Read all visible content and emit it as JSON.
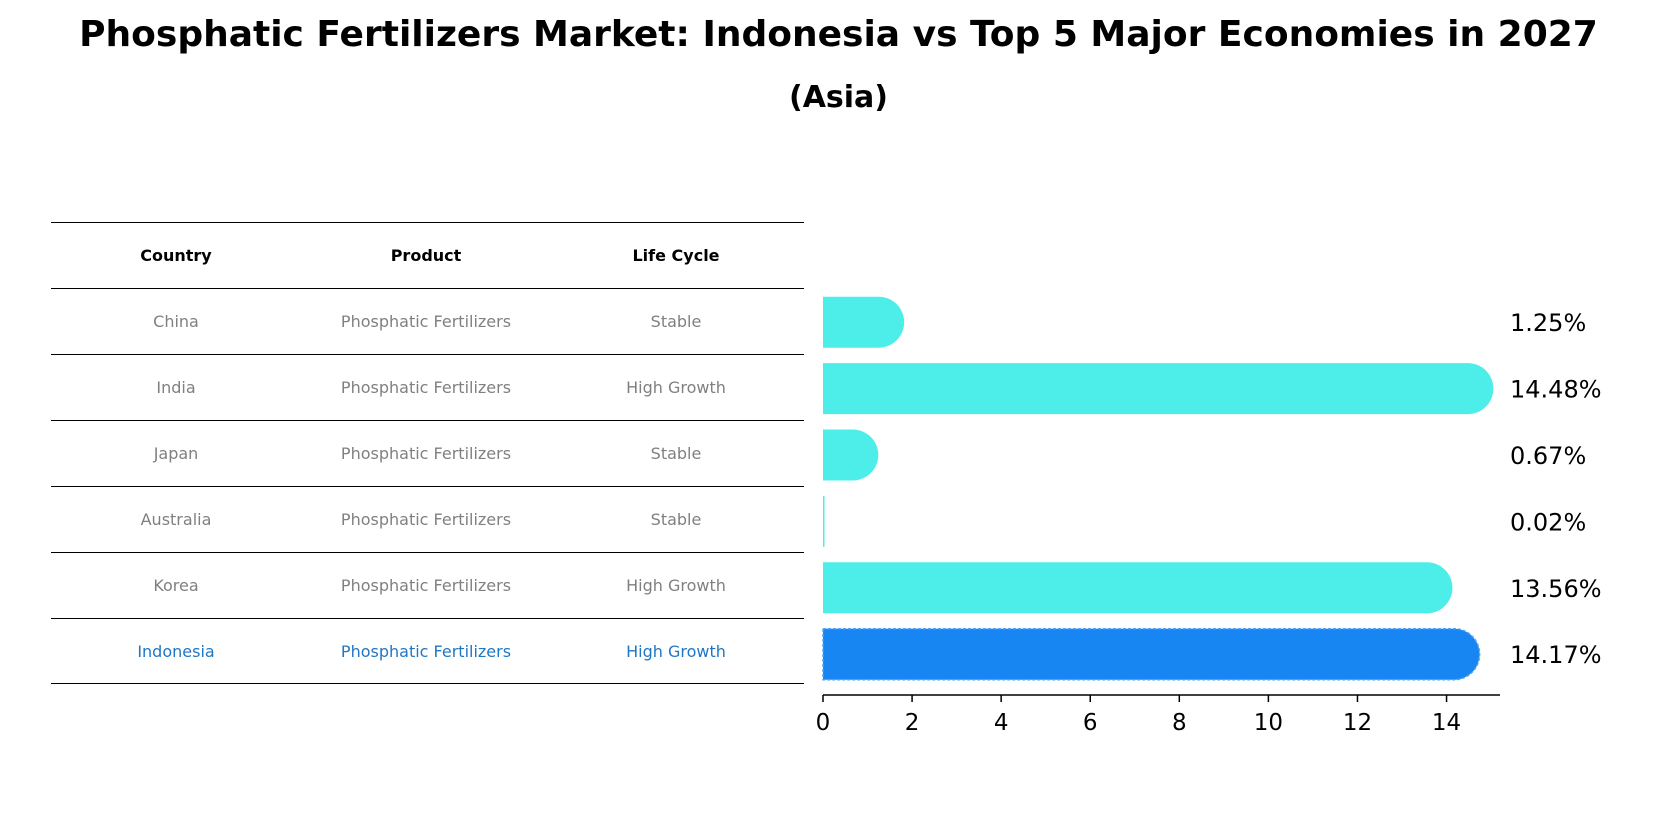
{
  "title": "Phosphatic Fertilizers Market: Indonesia vs Top 5 Major Economies in 2027",
  "subtitle": "(Asia)",
  "table": {
    "headers": [
      "Country",
      "Product",
      "Life Cycle"
    ],
    "rows": [
      [
        "China",
        "Phosphatic Fertilizers",
        "Stable"
      ],
      [
        "India",
        "Phosphatic Fertilizers",
        "High Growth"
      ],
      [
        "Japan",
        "Phosphatic Fertilizers",
        "Stable"
      ],
      [
        "Australia",
        "Phosphatic Fertilizers",
        "Stable"
      ],
      [
        "Korea",
        "Phosphatic Fertilizers",
        "High Growth"
      ],
      [
        "Indonesia",
        "Phosphatic Fertilizers",
        "High Growth"
      ]
    ]
  },
  "colors": {
    "bar": "#4deeea",
    "highlight_bar": "#1785f2",
    "highlight_text": "#1f77c4",
    "row_text": "#808080"
  },
  "chart_data": {
    "type": "bar",
    "orientation": "horizontal",
    "categories": [
      "China",
      "India",
      "Japan",
      "Australia",
      "Korea",
      "Indonesia"
    ],
    "values": [
      1.25,
      14.48,
      0.67,
      0.02,
      13.56,
      14.17
    ],
    "value_labels": [
      "1.25%",
      "14.48%",
      "0.67%",
      "0.02%",
      "13.56%",
      "14.17%"
    ],
    "highlight": "Indonesia",
    "xlim": [
      0,
      15.2
    ],
    "xticks": [
      0,
      2,
      4,
      6,
      8,
      10,
      12,
      14
    ],
    "grid": false
  }
}
